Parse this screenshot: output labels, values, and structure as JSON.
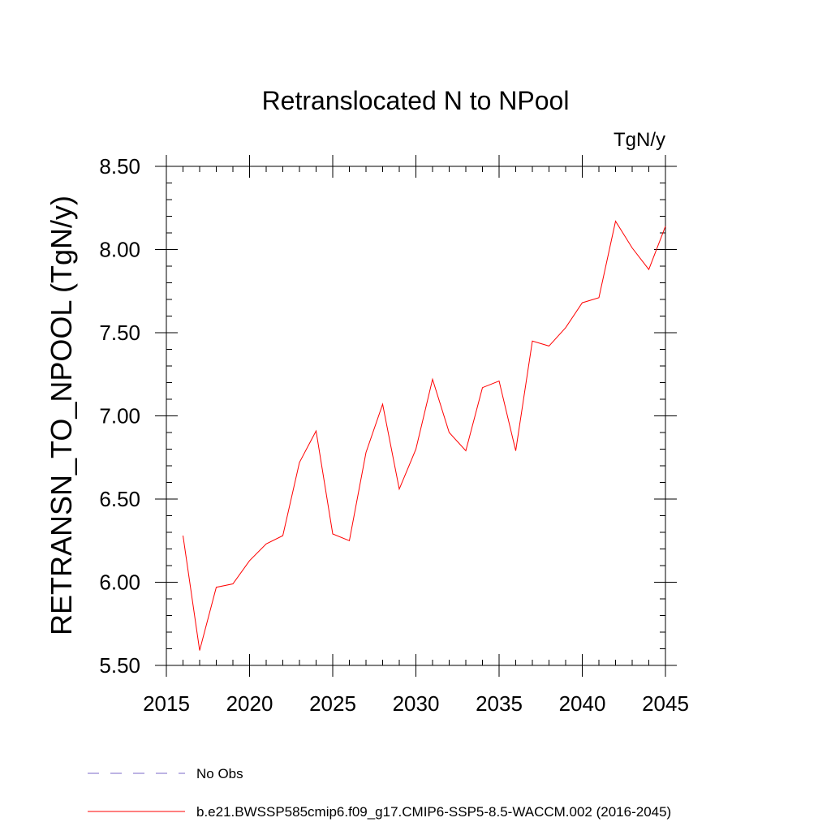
{
  "chart_data": {
    "type": "line",
    "title": "Retranslocated N to NPool",
    "units": "TgN/y",
    "ylabel": "RETRANSN_TO_NPOOL  (TgN/y)",
    "xlabel": "",
    "xlim": [
      2015,
      2045
    ],
    "ylim": [
      5.5,
      8.5
    ],
    "x_ticks": [
      2015,
      2020,
      2025,
      2030,
      2035,
      2040,
      2045
    ],
    "x_tick_labels": [
      "2015",
      "2020",
      "2025",
      "2030",
      "2035",
      "2040",
      "2045"
    ],
    "y_ticks": [
      5.5,
      6.0,
      6.5,
      7.0,
      7.5,
      8.0,
      8.5
    ],
    "y_tick_labels": [
      "5.50",
      "6.00",
      "6.50",
      "7.00",
      "7.50",
      "8.00",
      "8.50"
    ],
    "grid": false,
    "legend_position": "bottom",
    "series": [
      {
        "name": "b.e21.BWSSP585cmip6.f09_g17.CMIP6-SSP5-8.5-WACCM.002 (2016-2045)",
        "color": "#ff0000",
        "style": "solid",
        "x": [
          2016,
          2017,
          2018,
          2019,
          2020,
          2021,
          2022,
          2023,
          2024,
          2025,
          2026,
          2027,
          2028,
          2029,
          2030,
          2031,
          2032,
          2033,
          2034,
          2035,
          2036,
          2037,
          2038,
          2039,
          2040,
          2041,
          2042,
          2043,
          2044,
          2045
        ],
        "values": [
          6.28,
          5.59,
          5.97,
          5.99,
          6.13,
          6.23,
          6.28,
          6.72,
          6.91,
          6.29,
          6.25,
          6.78,
          7.07,
          6.56,
          6.8,
          7.22,
          6.9,
          6.79,
          7.17,
          7.21,
          6.79,
          7.45,
          7.42,
          7.53,
          7.68,
          7.71,
          8.17,
          8.01,
          7.88,
          8.14
        ]
      }
    ],
    "legend": [
      {
        "label": "No Obs",
        "color": "#7b68c8",
        "style": "dashed"
      },
      {
        "label": "b.e21.BWSSP585cmip6.f09_g17.CMIP6-SSP5-8.5-WACCM.002 (2016-2045)",
        "color": "#ff0000",
        "style": "solid"
      }
    ]
  }
}
